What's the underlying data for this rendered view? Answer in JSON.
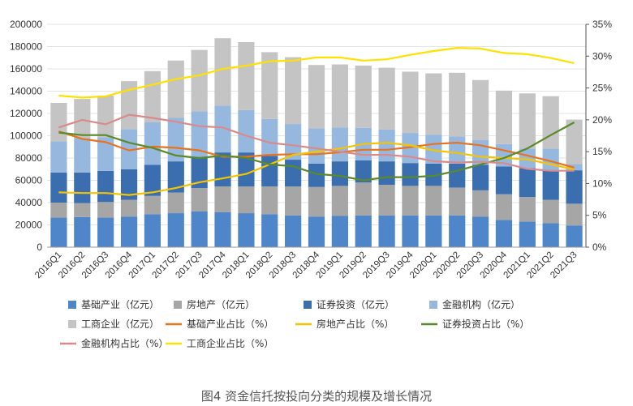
{
  "chart_data": {
    "type": "bar",
    "title": "图4  资金信托按投向分类的规模及增长情况",
    "categories": [
      "2016Q1",
      "2016Q2",
      "2016Q3",
      "2016Q4",
      "2017Q1",
      "2017Q2",
      "2017Q3",
      "2017Q4",
      "2018Q1",
      "2018Q2",
      "2018Q3",
      "2018Q4",
      "2019Q1",
      "2019Q2",
      "2019Q3",
      "2019Q4",
      "2020Q1",
      "2020Q2",
      "2020Q3",
      "2020Q4",
      "2021Q1",
      "2021Q2",
      "2021Q3"
    ],
    "left_axis": {
      "min": 0,
      "max": 200000,
      "step": 20000,
      "ticks": [
        "0",
        "20000",
        "40000",
        "60000",
        "80000",
        "100000",
        "120000",
        "140000",
        "160000",
        "180000",
        "200000"
      ]
    },
    "right_axis": {
      "min": 0,
      "max": 35,
      "step": 5,
      "ticks": [
        "0%",
        "5%",
        "10%",
        "15%",
        "20%",
        "25%",
        "30%",
        "35%"
      ]
    },
    "bar_series": [
      {
        "name": "基础产业（亿元）",
        "color": "#4e86c9",
        "values": [
          26500,
          27000,
          26500,
          27500,
          29500,
          30500,
          32000,
          31500,
          30500,
          29500,
          28500,
          27500,
          28000,
          28500,
          28500,
          28500,
          28500,
          28500,
          27500,
          24500,
          23000,
          21500,
          19500
        ]
      },
      {
        "name": "房地产（亿元）",
        "color": "#a6a6a6",
        "values": [
          13500,
          12500,
          14000,
          15000,
          16500,
          18500,
          21000,
          23000,
          24000,
          25000,
          26000,
          26500,
          27000,
          29500,
          27500,
          26500,
          26500,
          25000,
          23500,
          23000,
          22000,
          21000,
          19500
        ]
      },
      {
        "name": "证券投资（亿元）",
        "color": "#3a6eae",
        "values": [
          27000,
          27500,
          28000,
          27500,
          28000,
          28000,
          28000,
          30500,
          30500,
          27500,
          24000,
          21000,
          22000,
          20000,
          21000,
          20500,
          20000,
          21500,
          23000,
          25000,
          26000,
          26500,
          30000
        ]
      },
      {
        "name": "金融机构（亿元）",
        "color": "#97b8de",
        "values": [
          28000,
          31000,
          30000,
          36000,
          38000,
          39000,
          41000,
          42000,
          38000,
          33000,
          32000,
          31500,
          30500,
          29000,
          28500,
          27000,
          26000,
          24500,
          22000,
          20000,
          17500,
          19500,
          5500
        ]
      },
      {
        "name": "工商企业（亿元）",
        "color": "#c4c4c4",
        "values": [
          34500,
          35000,
          37500,
          43000,
          46000,
          51500,
          55000,
          60500,
          61000,
          60000,
          60000,
          57000,
          56500,
          56000,
          55500,
          55000,
          55000,
          57000,
          54000,
          48000,
          49500,
          47000,
          40000
        ]
      }
    ],
    "line_series": [
      {
        "name": "基础产业占比（%）",
        "color": "#e8731f",
        "values": [
          18.2,
          17.0,
          16.5,
          15.2,
          15.8,
          15.6,
          15.2,
          14.2,
          14.2,
          14.5,
          14.6,
          14.6,
          14.9,
          15.3,
          15.3,
          15.7,
          16.2,
          16.4,
          16.0,
          15.2,
          14.4,
          13.5,
          12.5
        ]
      },
      {
        "name": "房地产占比（%）",
        "color": "#f5c400",
        "values": [
          8.6,
          8.5,
          8.5,
          8.2,
          8.6,
          9.3,
          10.2,
          10.8,
          11.5,
          13.0,
          14.5,
          15.0,
          15.5,
          16.2,
          16.4,
          16.0,
          15.2,
          14.8,
          14.2,
          14.0,
          13.8,
          13.0,
          12.2
        ]
      },
      {
        "name": "证券投资占比（%）",
        "color": "#5a8a2a",
        "values": [
          18.0,
          17.6,
          17.6,
          16.4,
          15.6,
          14.4,
          14.0,
          14.4,
          14.0,
          13.0,
          12.7,
          11.5,
          11.2,
          10.5,
          11.0,
          11.0,
          11.2,
          12.0,
          13.0,
          14.0,
          15.5,
          17.6,
          19.6
        ]
      },
      {
        "name": "金融机构占比（%）",
        "color": "#d98a8a",
        "values": [
          18.8,
          20.0,
          19.3,
          20.8,
          20.3,
          19.7,
          19.0,
          18.8,
          17.5,
          16.4,
          16.0,
          15.5,
          15.0,
          14.5,
          14.5,
          14.2,
          13.5,
          13.3,
          13.4,
          13.2,
          12.3,
          12.0,
          12.0
        ]
      },
      {
        "name": "工商企业占比（%）",
        "color": "#ffe100",
        "values": [
          23.8,
          23.5,
          23.7,
          24.7,
          25.5,
          26.4,
          27.0,
          28.0,
          28.5,
          29.2,
          29.3,
          29.8,
          29.8,
          29.3,
          29.5,
          30.2,
          30.8,
          31.3,
          31.2,
          30.5,
          30.3,
          29.7,
          28.9
        ]
      }
    ]
  }
}
